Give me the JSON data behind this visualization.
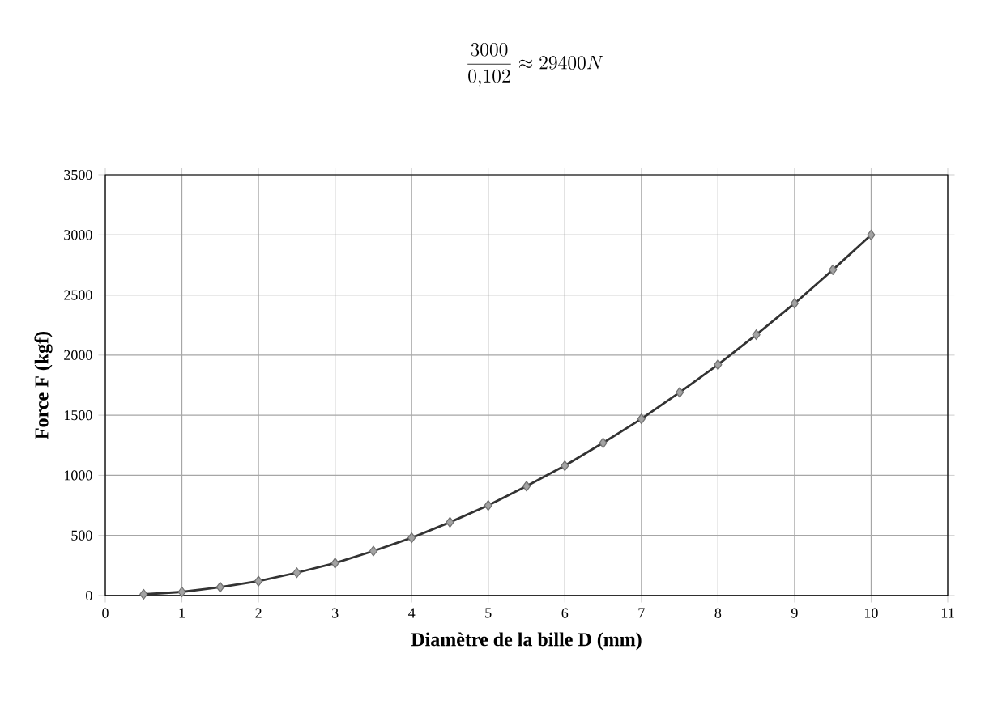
{
  "chart_data": {
    "type": "line",
    "annotations": [
      "\\frac{3000}{0{,}102} \\approx 29400N"
    ],
    "xlabel": "Diamètre de la bille D (mm)",
    "ylabel": "Force F (kgf)",
    "x": [
      0.5,
      1,
      1.5,
      2,
      2.5,
      3,
      3.5,
      4,
      4.5,
      5,
      5.5,
      6,
      6.5,
      7,
      7.5,
      8,
      8.5,
      9,
      9.5,
      10
    ],
    "series": [
      {
        "color": "#333333",
        "values": [
          10,
          30,
          70,
          120,
          190,
          270,
          370,
          480,
          610,
          750,
          910,
          1080,
          1270,
          1470,
          1690,
          1920,
          2170,
          2430,
          2710,
          3000
        ]
      }
    ],
    "xlim": [
      0,
      11
    ],
    "xticks": [
      0,
      1,
      2,
      3,
      4,
      5,
      6,
      7,
      8,
      9,
      10,
      11
    ],
    "ylim": [
      0,
      3500
    ],
    "yticks": [
      0,
      500,
      1000,
      1500,
      2000,
      2500,
      3000,
      3500
    ],
    "grid": true,
    "marker": "diamond",
    "line_style": "solid"
  }
}
